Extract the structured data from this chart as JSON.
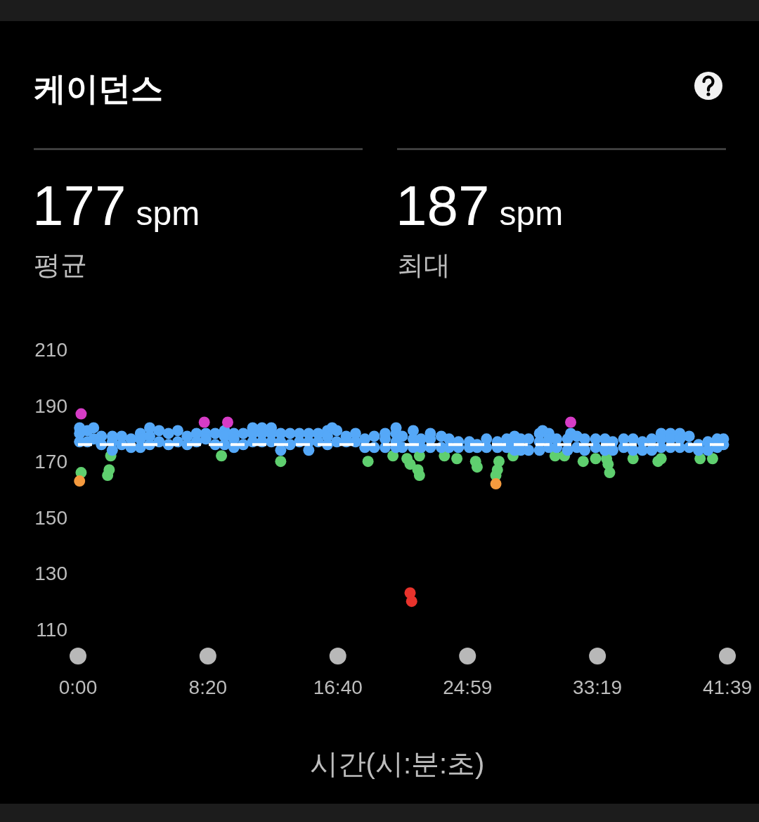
{
  "chart_data": {
    "type": "scatter",
    "title": "케이던스",
    "annotations": [
      "177 spm",
      "평균",
      "187 spm",
      "최대"
    ],
    "xlabel": "시간(시:분:초)",
    "xlim": [
      0,
      41.65
    ],
    "xticks": [
      {
        "value": 0,
        "label": "0:00"
      },
      {
        "value": 8.333,
        "label": "8:20"
      },
      {
        "value": 16.667,
        "label": "16:40"
      },
      {
        "value": 24.983,
        "label": "24:59"
      },
      {
        "value": 33.317,
        "label": "33:19"
      },
      {
        "value": 41.65,
        "label": "41:39"
      }
    ],
    "ylim": [
      110,
      210
    ],
    "yticks": [
      110,
      130,
      150,
      170,
      190,
      210
    ],
    "marker": "circle",
    "ref_lines": [
      {
        "axis": "y",
        "value": 176,
        "color": "#ffffff",
        "line_style": "dashed"
      }
    ],
    "series": [
      {
        "color": "#5fcf6f",
        "x": [
          0.2,
          1.9,
          2.0,
          2.1,
          9.2,
          13.0,
          18.6,
          20.2,
          21.1,
          21.3,
          21.8,
          21.9,
          21.9,
          23.5,
          24.3,
          25.5,
          25.6,
          26.8,
          26.9,
          27.0,
          27.9,
          30.6,
          31.2,
          32.4,
          33.2,
          33.9,
          34.0,
          34.1,
          35.6,
          37.2,
          37.4,
          39.9,
          40.7
        ],
        "values": [
          166,
          165,
          167,
          172,
          172,
          170,
          170,
          172,
          171,
          169,
          167,
          172,
          165,
          172,
          171,
          170,
          168,
          165,
          167,
          170,
          172,
          172,
          172,
          170,
          171,
          171,
          169,
          166,
          171,
          170,
          171,
          171,
          171
        ]
      },
      {
        "color": "#f59a3e",
        "x": [
          0.1,
          26.8
        ],
        "values": [
          163,
          162
        ]
      },
      {
        "color": "#e8332c",
        "x": [
          21.3,
          21.4
        ],
        "values": [
          123,
          120
        ]
      },
      {
        "color": "#55a8f8",
        "x": [
          0.1,
          0.1,
          0.1,
          0.6,
          0.6,
          1.0,
          1.0,
          1.5,
          1.5,
          2.2,
          2.2,
          2.2,
          2.8,
          2.8,
          3.4,
          3.4,
          4.0,
          4.0,
          4.0,
          4.6,
          4.6,
          4.6,
          5.2,
          5.2,
          5.8,
          5.8,
          6.4,
          6.4,
          7.0,
          7.0,
          7.6,
          7.6,
          8.2,
          8.2,
          8.8,
          8.8,
          9.4,
          9.4,
          9.4,
          10.0,
          10.0,
          10.0,
          10.6,
          10.6,
          11.2,
          11.2,
          11.2,
          11.8,
          11.8,
          11.8,
          12.4,
          12.4,
          12.4,
          13.0,
          13.0,
          13.0,
          13.6,
          13.6,
          14.2,
          14.2,
          14.8,
          14.8,
          14.8,
          15.4,
          15.4,
          16.0,
          16.0,
          16.0,
          16.3,
          16.6,
          16.6,
          17.2,
          17.2,
          17.8,
          17.8,
          18.4,
          18.4,
          19.0,
          19.0,
          19.7,
          19.7,
          19.7,
          20.4,
          20.4,
          20.4,
          20.4,
          20.8,
          20.8,
          21.5,
          21.5,
          21.5,
          22.0,
          22.0,
          22.6,
          22.6,
          22.6,
          23.3,
          23.3,
          23.8,
          23.8,
          24.4,
          24.4,
          25.1,
          25.1,
          25.6,
          25.6,
          26.2,
          26.2,
          26.9,
          26.9,
          27.5,
          27.5,
          28.0,
          28.0,
          28.0,
          28.4,
          28.4,
          28.9,
          28.9,
          29.6,
          29.6,
          29.6,
          29.8,
          30.2,
          30.2,
          30.2,
          30.7,
          30.7,
          31.4,
          31.4,
          31.6,
          32.0,
          32.0,
          32.5,
          32.5,
          33.2,
          33.2,
          33.8,
          33.8,
          34.3,
          34.3,
          35.0,
          35.0,
          35.6,
          35.6,
          36.2,
          36.2,
          36.8,
          36.8,
          37.4,
          37.4,
          37.4,
          38.0,
          38.0,
          38.0,
          38.6,
          38.6,
          38.6,
          39.2,
          39.2,
          39.8,
          39.8,
          40.4,
          40.4,
          41.0,
          41.0,
          41.4,
          41.4
        ],
        "values": [
          182,
          180,
          177,
          181,
          177,
          182,
          178,
          179,
          176,
          179,
          177,
          174,
          179,
          176,
          178,
          175,
          180,
          178,
          175,
          182,
          179,
          176,
          181,
          177,
          180,
          176,
          181,
          177,
          179,
          176,
          180,
          177,
          180,
          178,
          180,
          176,
          181,
          179,
          176,
          180,
          178,
          175,
          180,
          176,
          182,
          180,
          177,
          182,
          180,
          177,
          182,
          180,
          177,
          180,
          177,
          174,
          180,
          176,
          180,
          177,
          180,
          177,
          174,
          180,
          177,
          181,
          179,
          176,
          182,
          181,
          177,
          179,
          177,
          180,
          177,
          178,
          175,
          179,
          175,
          180,
          178,
          175,
          182,
          180,
          177,
          175,
          179,
          175,
          181,
          178,
          175,
          178,
          175,
          180,
          178,
          175,
          179,
          175,
          178,
          175,
          177,
          175,
          177,
          175,
          176,
          175,
          178,
          175,
          177,
          175,
          178,
          175,
          179,
          177,
          174,
          178,
          174,
          178,
          174,
          180,
          177,
          174,
          181,
          180,
          178,
          175,
          178,
          175,
          178,
          174,
          180,
          179,
          175,
          178,
          174,
          178,
          175,
          178,
          174,
          177,
          174,
          178,
          175,
          178,
          174,
          177,
          174,
          178,
          174,
          180,
          178,
          175,
          180,
          178,
          175,
          180,
          178,
          175,
          179,
          175,
          176,
          174,
          177,
          174,
          178,
          175,
          178,
          176
        ]
      },
      {
        "color": "#d63cc6",
        "x": [
          0.2,
          8.1,
          9.6,
          31.6
        ],
        "values": [
          187,
          184,
          184,
          184
        ]
      }
    ]
  }
}
